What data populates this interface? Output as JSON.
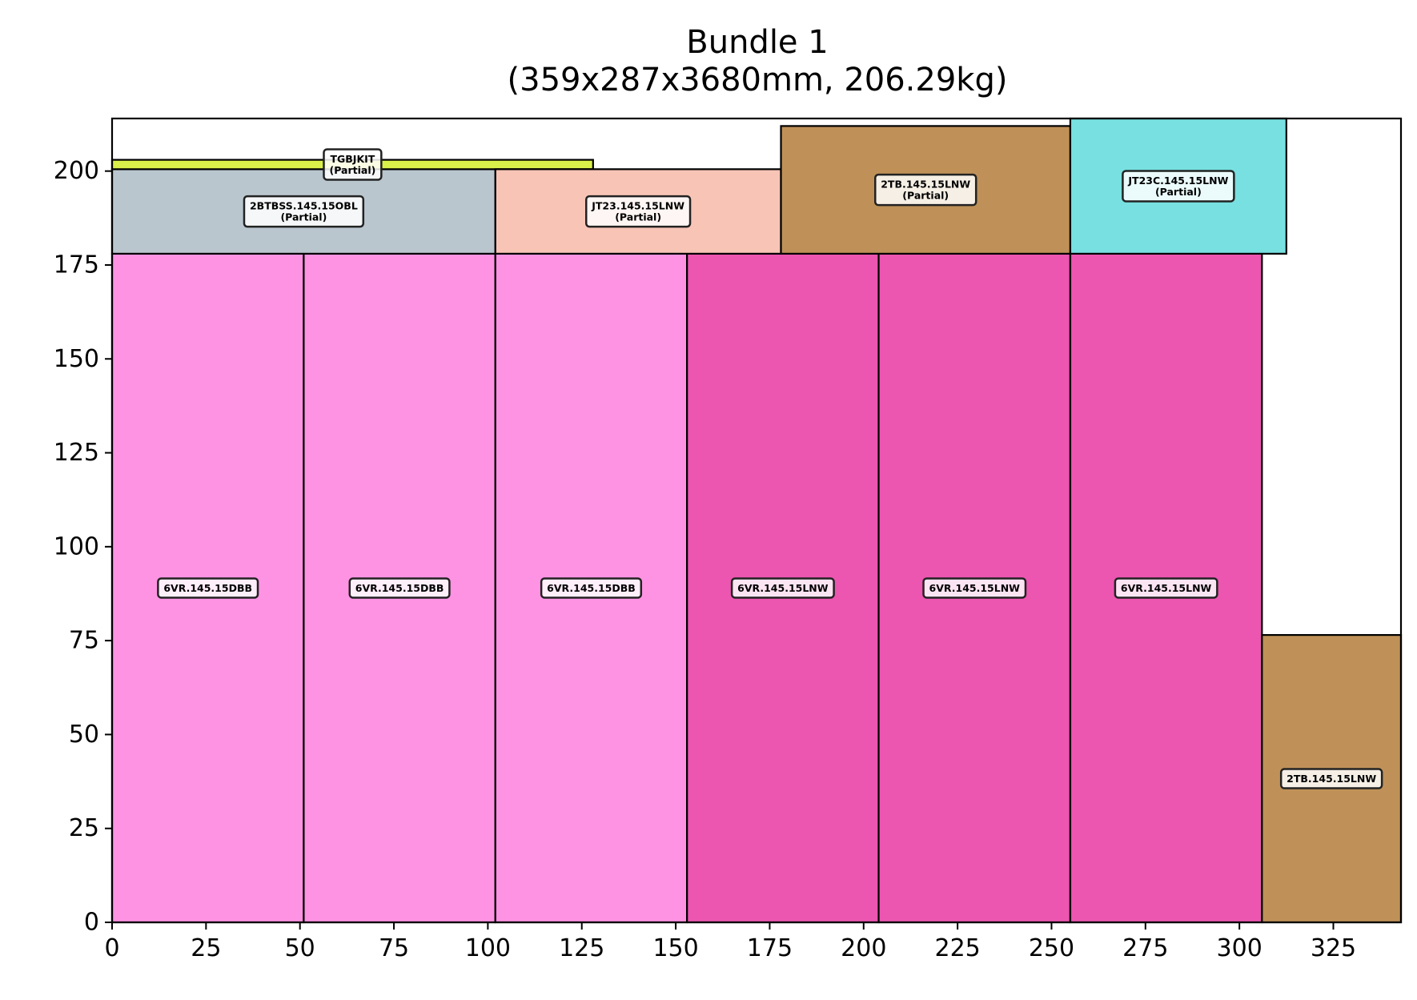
{
  "chart_data": {
    "type": "bar",
    "title": "Bundle 1",
    "subtitle": "(359x287x3680mm, 206.29kg)",
    "xlabel": "",
    "ylabel": "",
    "xlim": [
      0,
      343
    ],
    "ylim": [
      0,
      214
    ],
    "xticks": [
      "0",
      "25",
      "50",
      "75",
      "100",
      "125",
      "150",
      "175",
      "200",
      "225",
      "250",
      "275",
      "300",
      "325"
    ],
    "yticks": [
      "0",
      "25",
      "50",
      "75",
      "100",
      "125",
      "150",
      "175",
      "200"
    ],
    "grid": false,
    "boxes": [
      {
        "name": "6VR.145.15DBB",
        "x0": 0,
        "x1": 51,
        "y0": 0,
        "y1": 178,
        "color": "#FF93E3"
      },
      {
        "name": "6VR.145.15DBB",
        "x0": 51,
        "x1": 102,
        "y0": 0,
        "y1": 178,
        "color": "#FF93E3"
      },
      {
        "name": "6VR.145.15DBB",
        "x0": 102,
        "x1": 153,
        "y0": 0,
        "y1": 178,
        "color": "#FF93E3"
      },
      {
        "name": "6VR.145.15LNW",
        "x0": 153,
        "x1": 204,
        "y0": 0,
        "y1": 178,
        "color": "#EC55B0"
      },
      {
        "name": "6VR.145.15LNW",
        "x0": 204,
        "x1": 255,
        "y0": 0,
        "y1": 178,
        "color": "#EC55B0"
      },
      {
        "name": "6VR.145.15LNW",
        "x0": 255,
        "x1": 306,
        "y0": 0,
        "y1": 178,
        "color": "#EC55B0"
      },
      {
        "name": "2TB.145.15LNW",
        "x0": 306,
        "x1": 343,
        "y0": 0,
        "y1": 76.5,
        "color": "#BF9158"
      },
      {
        "name": "2BTBSS.145.15OBL",
        "note": "(Partial)",
        "x0": 0,
        "x1": 102,
        "y0": 178,
        "y1": 200.5,
        "color": "#B9C6CE"
      },
      {
        "name": "TGBJKIT",
        "note": "(Partial)",
        "x0": 0,
        "x1": 128,
        "y0": 200.5,
        "y1": 203,
        "color": "#D9F04A"
      },
      {
        "name": "JT23.145.15LNW",
        "note": "(Partial)",
        "x0": 102,
        "x1": 178,
        "y0": 178,
        "y1": 200.5,
        "color": "#F7C4B6"
      },
      {
        "name": "2TB.145.15LNW",
        "note": "(Partial)",
        "x0": 178,
        "x1": 255,
        "y0": 178,
        "y1": 212,
        "color": "#BF9158"
      },
      {
        "name": "JT23C.145.15LNW",
        "note": "(Partial)",
        "x0": 255,
        "x1": 312.5,
        "y0": 178,
        "y1": 214,
        "color": "#78E0E0"
      }
    ]
  }
}
